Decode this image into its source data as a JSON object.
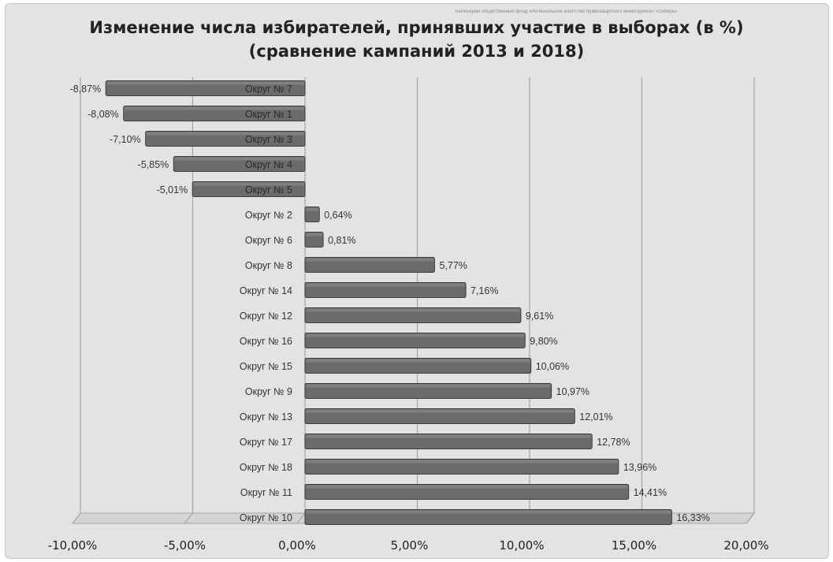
{
  "watermark": "Калмыцкий общественный фонд «Региональное агентство правозащитного мониторинга» «Сибирь»",
  "chart_data": {
    "type": "bar",
    "orientation": "horizontal",
    "title": "Изменение числа избирателей, принявших участие в выборах (в %)",
    "subtitle": "(сравнение кампаний 2013 и 2018)",
    "xlim": [
      -10,
      20
    ],
    "x_ticks": [
      -10,
      -5,
      0,
      5,
      10,
      15,
      20
    ],
    "x_tick_labels": [
      "-10,00%",
      "-5,00%",
      "0,00%",
      "5,00%",
      "10,00%",
      "15,00%",
      "20,00%"
    ],
    "grid": true,
    "legend": "none",
    "categories": [
      "Округ № 7",
      "Округ № 1",
      "Округ № 3",
      "Округ № 4",
      "Округ № 5",
      "Округ № 2",
      "Округ № 6",
      "Округ № 8",
      "Округ № 14",
      "Округ № 12",
      "Округ № 16",
      "Округ № 15",
      "Округ № 9",
      "Округ № 13",
      "Округ № 17",
      "Округ № 18",
      "Округ № 11",
      "Округ № 10"
    ],
    "values": [
      -8.87,
      -8.08,
      -7.1,
      -5.85,
      -5.01,
      0.64,
      0.81,
      5.77,
      7.16,
      9.61,
      9.8,
      10.06,
      10.97,
      12.01,
      12.78,
      13.96,
      14.41,
      16.33
    ],
    "value_labels": [
      "-8,87%",
      "-8,08%",
      "-7,10%",
      "-5,85%",
      "-5,01%",
      "0,64%",
      "0,81%",
      "5,77%",
      "7,16%",
      "9,61%",
      "9,80%",
      "10,06%",
      "10,97%",
      "12,01%",
      "12,78%",
      "13,96%",
      "14,41%",
      "16,33%"
    ],
    "bar_color": "#6b6b6b",
    "bar_edge_color": "#3e3e3e",
    "grid_color": "#a6a6a6"
  }
}
